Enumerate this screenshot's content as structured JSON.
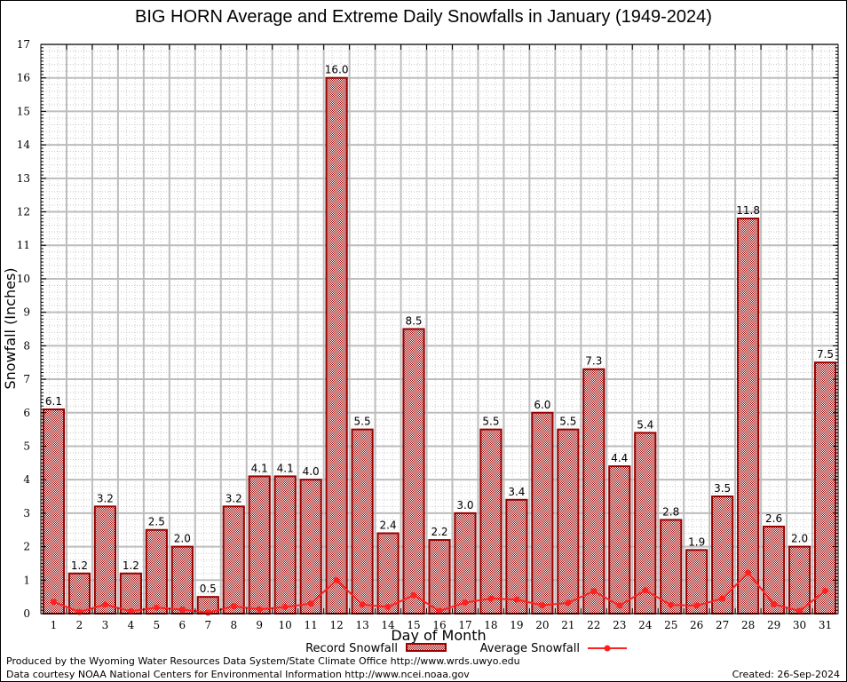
{
  "chart_data": {
    "type": "bar",
    "title": "BIG HORN Average and Extreme Daily Snowfalls in January (1949-2024)",
    "xlabel": "Day of Month",
    "ylabel": "Snowfall (Inches)",
    "ylim": [
      0,
      17
    ],
    "yticks": [
      0,
      1,
      2,
      3,
      4,
      5,
      6,
      7,
      8,
      9,
      10,
      11,
      12,
      13,
      14,
      15,
      16,
      17
    ],
    "grid": true,
    "legend_placement": "bottom-center",
    "categories": [
      "1",
      "2",
      "3",
      "4",
      "5",
      "6",
      "7",
      "8",
      "9",
      "10",
      "11",
      "12",
      "13",
      "14",
      "15",
      "16",
      "17",
      "18",
      "19",
      "20",
      "21",
      "22",
      "23",
      "24",
      "25",
      "26",
      "27",
      "28",
      "29",
      "30",
      "31"
    ],
    "series": [
      {
        "name": "Record Snowfall",
        "type": "bar",
        "color": "#990000",
        "values": [
          6.1,
          1.2,
          3.2,
          1.2,
          2.5,
          2.0,
          0.5,
          3.2,
          4.1,
          4.1,
          4.0,
          16.0,
          5.5,
          2.4,
          8.5,
          2.2,
          3.0,
          5.5,
          3.4,
          6.0,
          5.5,
          7.3,
          4.4,
          5.4,
          2.8,
          1.9,
          3.5,
          11.8,
          2.6,
          2.0,
          7.5
        ],
        "labels": [
          "6.1",
          "1.2",
          "3.2",
          "1.2",
          "2.5",
          "2.0",
          "0.5",
          "3.2",
          "4.1",
          "4.1",
          "4.0",
          "16.0",
          "5.5",
          "2.4",
          "8.5",
          "2.2",
          "3.0",
          "5.5",
          "3.4",
          "6.0",
          "5.5",
          "7.3",
          "4.4",
          "5.4",
          "2.8",
          "1.9",
          "3.5",
          "11.8",
          "2.6",
          "2.0",
          "7.5"
        ]
      },
      {
        "name": "Average Snowfall",
        "type": "line",
        "color": "#ff2020",
        "values": [
          0.35,
          0.05,
          0.27,
          0.07,
          0.18,
          0.12,
          0.03,
          0.22,
          0.13,
          0.2,
          0.3,
          1.0,
          0.27,
          0.2,
          0.55,
          0.08,
          0.33,
          0.45,
          0.42,
          0.25,
          0.32,
          0.67,
          0.24,
          0.7,
          0.26,
          0.24,
          0.45,
          1.22,
          0.28,
          0.08,
          0.68
        ]
      }
    ]
  },
  "footer": {
    "line1": "Produced by the Wyoming Water Resources Data System/State Climate Office http://www.wrds.uwyo.edu",
    "line2": "Data courtesy NOAA National Centers for Environmental Information http://www.ncei.noaa.gov",
    "created": "Created: 26-Sep-2024"
  }
}
